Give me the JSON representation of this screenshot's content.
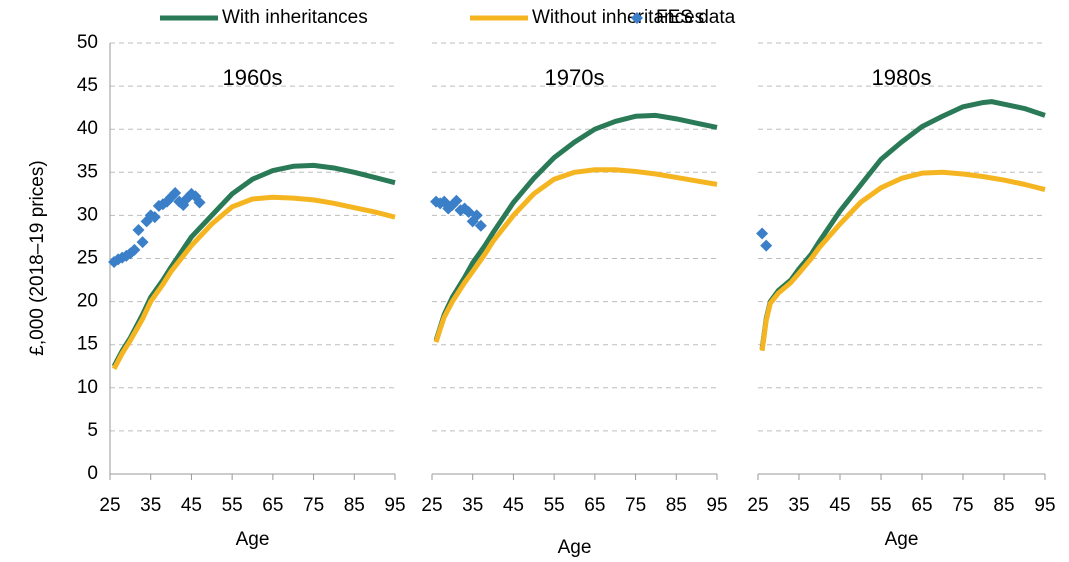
{
  "legend": [
    {
      "name": "With inheritances",
      "color": "#2b7a57",
      "style": "line"
    },
    {
      "name": "Without inheritances",
      "color": "#f5b521",
      "style": "line"
    },
    {
      "name": "FES data",
      "color": "#3a7fc8",
      "style": "scatter"
    }
  ],
  "chart_data": [
    {
      "type": "line",
      "title": "1960s",
      "y_label": "£,000 (2018–19 prices)",
      "x_label": "Age",
      "xlim": [
        25,
        95
      ],
      "xticks": [
        25,
        35,
        45,
        55,
        65,
        75,
        85,
        95
      ],
      "ylim": [
        0,
        50
      ],
      "yticks": [
        0,
        5,
        10,
        15,
        20,
        25,
        30,
        35,
        40,
        45,
        50
      ],
      "grid": true,
      "series": [
        {
          "x": [
            26,
            28,
            30,
            33,
            35,
            38,
            40,
            45,
            50,
            55,
            60,
            65,
            70,
            75,
            80,
            85,
            90,
            95
          ],
          "values": [
            12.5,
            14.3,
            15.8,
            18.5,
            20.5,
            22.5,
            24,
            27.5,
            30,
            32.5,
            34.2,
            35.2,
            35.7,
            35.8,
            35.5,
            35,
            34.4,
            33.8
          ]
        },
        {
          "x": [
            26,
            28,
            30,
            33,
            35,
            38,
            40,
            45,
            50,
            55,
            60,
            65,
            70,
            75,
            80,
            85,
            90,
            95
          ],
          "values": [
            12.2,
            14,
            15.5,
            18,
            20,
            22,
            23.5,
            26.5,
            29,
            31,
            31.9,
            32.1,
            32,
            31.8,
            31.4,
            30.9,
            30.4,
            29.8
          ]
        },
        {
          "x": [
            26,
            27,
            28,
            29,
            30,
            31,
            32,
            33,
            34,
            35,
            36,
            37,
            38,
            39,
            40,
            41,
            42,
            43,
            44,
            45,
            46,
            47
          ],
          "values": [
            24.6,
            24.9,
            25.1,
            25.3,
            25.6,
            26,
            28.3,
            26.9,
            29.3,
            30,
            29.8,
            31.1,
            31.3,
            31.6,
            32.1,
            32.6,
            31.6,
            31.2,
            32,
            32.5,
            32.2,
            31.5
          ]
        }
      ]
    },
    {
      "type": "line",
      "title": "1970s",
      "x_label": "Age",
      "xlim": [
        25,
        95
      ],
      "xticks": [
        25,
        35,
        45,
        55,
        65,
        75,
        85,
        95
      ],
      "ylim": [
        0,
        50
      ],
      "yticks": [
        0,
        5,
        10,
        15,
        20,
        25,
        30,
        35,
        40,
        45,
        50
      ],
      "grid": true,
      "series": [
        {
          "x": [
            26,
            27,
            28,
            30,
            33,
            35,
            38,
            40,
            45,
            50,
            55,
            60,
            65,
            70,
            75,
            80,
            85,
            90,
            95
          ],
          "values": [
            15.5,
            17,
            18.5,
            20.5,
            22.8,
            24.5,
            26.5,
            28,
            31.5,
            34.3,
            36.7,
            38.5,
            40,
            40.9,
            41.5,
            41.6,
            41.2,
            40.7,
            40.2
          ]
        },
        {
          "x": [
            26,
            27,
            28,
            30,
            33,
            35,
            38,
            40,
            45,
            50,
            55,
            60,
            65,
            70,
            75,
            80,
            85,
            90,
            95
          ],
          "values": [
            15.3,
            16.8,
            18.2,
            20,
            22.2,
            23.5,
            25.5,
            27,
            30,
            32.5,
            34.2,
            35,
            35.3,
            35.3,
            35.1,
            34.8,
            34.4,
            34,
            33.6
          ]
        },
        {
          "x": [
            26,
            27,
            28,
            29,
            30,
            31,
            32,
            33,
            34,
            35,
            36,
            37
          ],
          "values": [
            31.6,
            31.4,
            31.6,
            30.8,
            31.2,
            31.7,
            30.6,
            30.8,
            30.4,
            29.3,
            30,
            28.8
          ]
        }
      ]
    },
    {
      "type": "line",
      "title": "1980s",
      "x_label": "Age",
      "xlim": [
        25,
        95
      ],
      "xticks": [
        25,
        35,
        45,
        55,
        65,
        75,
        85,
        95
      ],
      "ylim": [
        0,
        50
      ],
      "yticks": [
        0,
        5,
        10,
        15,
        20,
        25,
        30,
        35,
        40,
        45,
        50
      ],
      "grid": true,
      "series": [
        {
          "x": [
            26,
            27,
            28,
            30,
            33,
            35,
            38,
            40,
            45,
            50,
            55,
            60,
            65,
            70,
            75,
            80,
            82,
            85,
            90,
            95
          ],
          "values": [
            14.5,
            18,
            20,
            21.3,
            22.5,
            23.8,
            25.5,
            27,
            30.5,
            33.5,
            36.5,
            38.5,
            40.3,
            41.5,
            42.6,
            43.1,
            43.2,
            42.9,
            42.4,
            41.6
          ]
        },
        {
          "x": [
            26,
            27,
            28,
            30,
            33,
            35,
            38,
            40,
            45,
            50,
            55,
            60,
            65,
            70,
            75,
            80,
            85,
            90,
            95
          ],
          "values": [
            14.3,
            17.8,
            19.8,
            21,
            22.2,
            23.3,
            25,
            26.3,
            29,
            31.5,
            33.2,
            34.3,
            34.9,
            35,
            34.8,
            34.5,
            34.1,
            33.6,
            33
          ]
        },
        {
          "x": [
            26,
            27
          ],
          "values": [
            27.9,
            26.5
          ]
        }
      ]
    }
  ]
}
